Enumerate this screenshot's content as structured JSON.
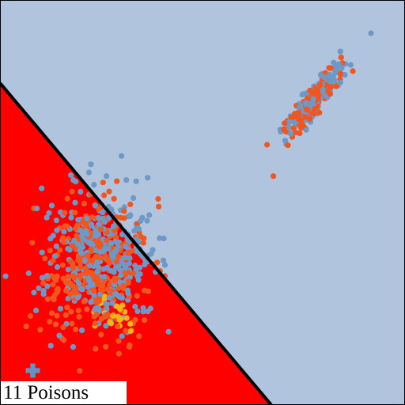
{
  "chart_data": {
    "type": "scatter",
    "caption": "11 Poisons",
    "grid": false,
    "legend": "none",
    "xlim": [
      0,
      100
    ],
    "ylim": [
      0,
      100
    ],
    "decision_boundary": {
      "points": [
        [
          0,
          79.5
        ],
        [
          67,
          0
        ]
      ],
      "fill_side": "lower-left",
      "region_colors": {
        "upper": "#b0c4de",
        "lower": "#ff0000"
      },
      "line_color": "#000000"
    },
    "colors": {
      "blue": "#6f98c5",
      "orange": "#f0561d",
      "gold": "#f6b418",
      "poison": "#5f94c5"
    },
    "clusters": [
      {
        "name": "",
        "color": "orange",
        "n": 320,
        "cx": 24,
        "cy": 34,
        "sx": 6.5,
        "sy": 8.5,
        "seed": 11
      },
      {
        "name": "",
        "color": "blue",
        "n": 330,
        "cx": 25,
        "cy": 36,
        "sx": 6.5,
        "sy": 8.5,
        "seed": 23
      },
      {
        "name": "",
        "color": "gold",
        "n": 22,
        "cx": 28.5,
        "cy": 21.5,
        "sx": 2.5,
        "sy": 2.5,
        "seed": 37
      },
      {
        "name": "",
        "color": "orange",
        "n": 150,
        "cx": 77.5,
        "cy": 75,
        "sx": 1.2,
        "sy": 5.5,
        "rot": 52,
        "seed": 41
      },
      {
        "name": "",
        "color": "blue",
        "n": 150,
        "cx": 78,
        "cy": 76,
        "sx": 1.2,
        "sy": 5.5,
        "rot": 52,
        "seed": 59
      }
    ],
    "points": [
      {
        "x": 91.6,
        "y": 91.8,
        "color": "blue"
      },
      {
        "x": 67.5,
        "y": 56.5,
        "color": "orange"
      },
      {
        "x": 8,
        "y": 8.5,
        "color": "gold"
      },
      {
        "x": 39.4,
        "y": 41.2,
        "color": "blue"
      },
      {
        "x": 30,
        "y": 61.5,
        "color": "blue"
      }
    ],
    "poison_points": [
      {
        "x": 8.1,
        "y": 8.5
      }
    ]
  }
}
